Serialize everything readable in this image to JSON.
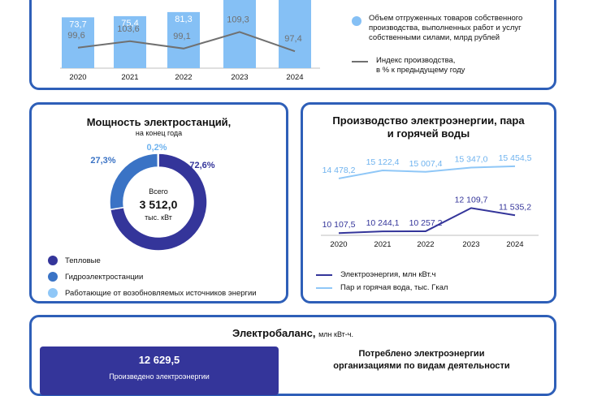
{
  "colors": {
    "border": "#2e5fb8",
    "bar_light": "#85c0f5",
    "index_line": "#707070",
    "thermal": "#34359a",
    "hydro": "#3a73c5",
    "renewable": "#8fc7f7",
    "electricity_line": "#34359a",
    "steam_line": "#8fc7f7"
  },
  "top_legend": {
    "shipped": "Объем отгруженных товаров собственного производства, выполненных работ и услуг собственными силами, млрд рублей",
    "index_line1": "Индекс производства,",
    "index_line2": "в % к предыдущему году"
  },
  "power_capacity": {
    "title": "Мощность электростанций,",
    "subtitle": "на конец года",
    "center_label": "Всего",
    "center_value": "3 512,0",
    "center_unit": "тыс. кВт",
    "legend": [
      "Тепловые",
      "Гидроэлектростанции",
      "Работающие от возобновляемых источников энергии"
    ]
  },
  "production": {
    "title_line1": "Производство электроэнергии, пара",
    "title_line2": "и горячей воды",
    "legend_electricity": "Электроэнергия, млн кВт.ч",
    "legend_steam": "Пар и горячая вода, тыс. Гкал"
  },
  "balance": {
    "title": "Электробаланс,",
    "unit": "млн кВт-ч.",
    "banner_value": "12 629,5",
    "banner_caption": "Произведено электроэнергии",
    "consumed_line1": "Потреблено электроэнергии",
    "consumed_line2": "организациями по видам деятельности"
  },
  "chart_data": [
    {
      "type": "bar",
      "categories": [
        "2020",
        "2021",
        "2022",
        "2023",
        "2024"
      ],
      "series": [
        {
          "values": [
            73.7,
            75.4,
            81.3,
            null,
            null
          ],
          "labels": [
            "73,7",
            "75,4",
            "81,3",
            "",
            ""
          ]
        },
        {
          "values": [
            99.6,
            103.6,
            99.1,
            109.3,
            97.4
          ],
          "labels": [
            "99,6",
            "103,6",
            "99,1",
            "109,3",
            "97,4"
          ],
          "kind": "line"
        }
      ]
    },
    {
      "type": "pie",
      "categories": [
        "Тепловые",
        "Гидроэлектростанции",
        "Работающие от возобновляемых источников энергии"
      ],
      "values": [
        72.6,
        27.3,
        0.2
      ],
      "labels": [
        "72,6%",
        "27,3%",
        "0,2%"
      ]
    },
    {
      "type": "line",
      "categories": [
        "2020",
        "2021",
        "2022",
        "2023",
        "2024"
      ],
      "series": [
        {
          "name": "Электроэнергия, млн кВт.ч",
          "values": [
            10107.5,
            10244.1,
            10257.2,
            12109.7,
            11535.2
          ],
          "labels": [
            "10 107,5",
            "10 244,1",
            "10 257,2",
            "12 109,7",
            "11 535,2"
          ]
        },
        {
          "name": "Пар и горячая вода, тыс. Гкал",
          "values": [
            14478.2,
            15122.4,
            15007.4,
            15347.0,
            15454.5
          ],
          "labels": [
            "14 478,2",
            "15 122,4",
            "15 007,4",
            "15 347,0",
            "15 454,5"
          ]
        }
      ]
    }
  ]
}
